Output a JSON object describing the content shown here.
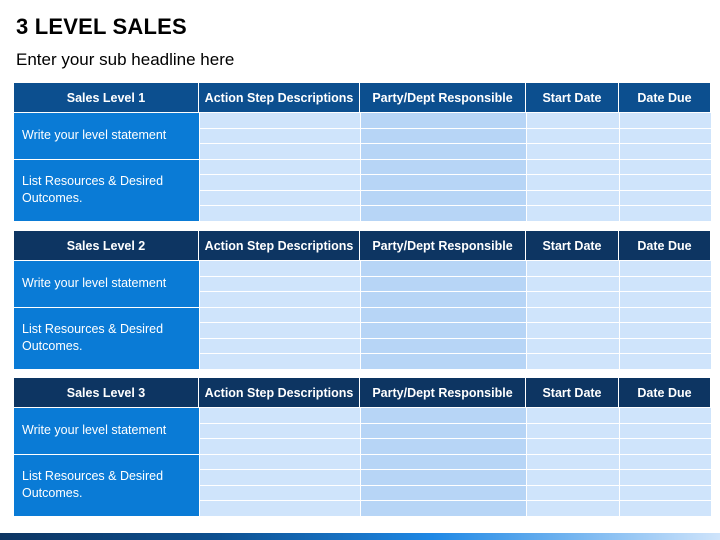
{
  "title": "3 LEVEL SALES",
  "subtitle": "Enter your sub headline here",
  "columns": [
    "Action Step Descriptions",
    "Party/Dept Responsible",
    "Start Date",
    "Date Due"
  ],
  "levels": [
    {
      "name": "Sales Level 1",
      "statement": "Write your level statement",
      "resources": "List Resources & Desired Outcomes."
    },
    {
      "name": "Sales Level 2",
      "statement": "Write your level statement",
      "resources": "List Resources & Desired Outcomes."
    },
    {
      "name": "Sales Level 3",
      "statement": "Write your level statement",
      "resources": "List Resources & Desired Outcomes."
    }
  ],
  "colors": {
    "header_level1": "#0c4f8f",
    "header_level2_3": "#0d3562",
    "row_label": "#0a7bd6",
    "cell_light": "#cfe4fb",
    "cell_mid": "#b7d5f6"
  }
}
